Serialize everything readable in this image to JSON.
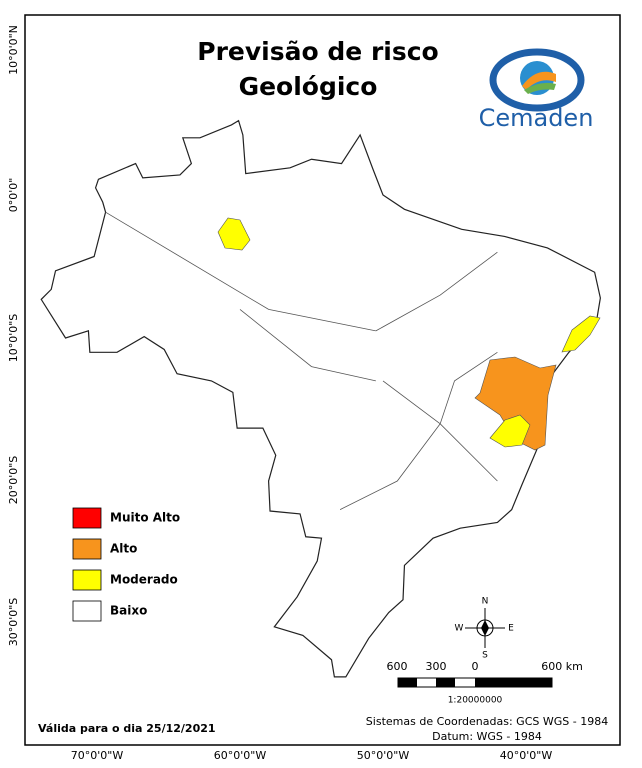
{
  "title": [
    "Previsão de risco",
    "Geológico"
  ],
  "logo": "Cemaden",
  "latitude_labels": [
    "10°0'0\"N",
    "0°0'0\"",
    "10°0'0\"S",
    "20°0'0\"S",
    "30°0'0\"S"
  ],
  "longitude_labels": [
    "70°0'0\"W",
    "60°0'0\"W",
    "50°0'0\"W",
    "40°0'0\"W"
  ],
  "legend": [
    {
      "name": "Muito Alto",
      "color": "#ff0000"
    },
    {
      "name": "Alto",
      "color": "#f7941d"
    },
    {
      "name": "Moderado",
      "color": "#ffff00"
    },
    {
      "name": "Baixo",
      "color": "#ffffff"
    }
  ],
  "compass": [
    "N",
    "S",
    "E",
    "W"
  ],
  "scale_bar": {
    "labels": [
      "600",
      "300",
      "0",
      "600 km"
    ],
    "ratio": "1:20000000"
  },
  "validity": "Válida para o dia 25/12/2021",
  "coordinate_system": [
    "Sistemas de Coordenadas: GCS WGS - 1984",
    "Datum: WGS - 1984"
  ]
}
